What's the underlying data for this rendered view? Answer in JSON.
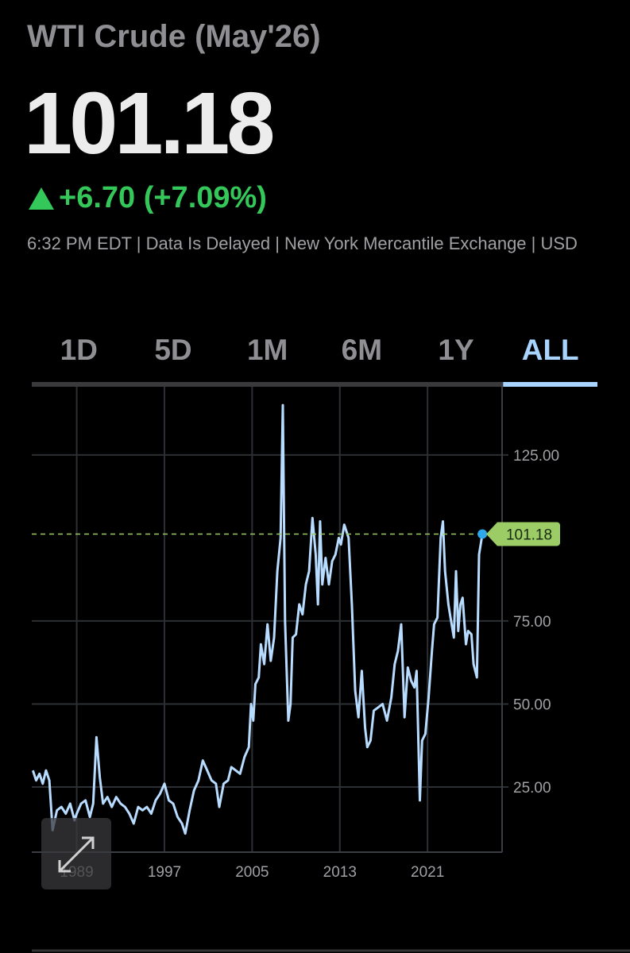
{
  "header": {
    "title": "WTI Crude (May'26)",
    "price": "101.18",
    "change": "+6.70 (+7.09%)",
    "info": "6:32 PM EDT | Data Is Delayed | New York Mercantile Exchange | USD"
  },
  "tabs": {
    "items": [
      "1D",
      "5D",
      "1M",
      "6M",
      "1Y",
      "ALL"
    ],
    "selected": 5
  },
  "chart_data": {
    "type": "line",
    "x": [
      1985.0,
      1985.3,
      1985.6,
      1985.9,
      1986.2,
      1986.5,
      1986.8,
      1987.2,
      1987.6,
      1988.0,
      1988.4,
      1988.8,
      1989.0,
      1989.4,
      1989.8,
      1990.2,
      1990.5,
      1990.8,
      1991.1,
      1991.4,
      1991.8,
      1992.2,
      1992.6,
      1993.0,
      1993.4,
      1993.8,
      1994.2,
      1994.6,
      1995.0,
      1995.4,
      1995.8,
      1996.2,
      1996.6,
      1997.0,
      1997.4,
      1997.8,
      1998.2,
      1998.6,
      1998.9,
      1999.3,
      1999.7,
      2000.1,
      2000.5,
      2000.9,
      2001.3,
      2001.7,
      2002.0,
      2002.4,
      2002.8,
      2003.1,
      2003.5,
      2003.9,
      2004.3,
      2004.7,
      2004.9,
      2005.1,
      2005.3,
      2005.6,
      2005.8,
      2006.1,
      2006.4,
      2006.7,
      2007.0,
      2007.3,
      2007.6,
      2007.8,
      2008.0,
      2008.3,
      2008.5,
      2008.7,
      2009.0,
      2009.3,
      2009.6,
      2009.9,
      2010.2,
      2010.5,
      2010.8,
      2011.0,
      2011.2,
      2011.4,
      2011.7,
      2012.0,
      2012.3,
      2012.6,
      2012.9,
      2013.1,
      2013.4,
      2013.8,
      2014.1,
      2014.4,
      2014.7,
      2015.0,
      2015.3,
      2015.5,
      2015.8,
      2016.1,
      2016.5,
      2016.9,
      2017.3,
      2017.7,
      2018.0,
      2018.3,
      2018.6,
      2018.9,
      2019.2,
      2019.5,
      2019.8,
      2020.0,
      2020.3,
      2020.5,
      2020.8,
      2021.1,
      2021.4,
      2021.6,
      2021.9,
      2022.2,
      2022.4,
      2022.6,
      2022.9,
      2023.1,
      2023.4,
      2023.6,
      2023.8,
      2024.0,
      2024.2,
      2024.5,
      2024.7,
      2025.0,
      2025.2,
      2025.5,
      2025.7,
      2026.0
    ],
    "series": [
      {
        "color": "#b8dcff",
        "values": [
          30,
          27,
          29,
          26,
          30,
          27,
          12,
          18,
          19,
          17,
          20,
          15,
          17,
          20,
          21,
          16,
          20,
          40,
          28,
          20,
          22,
          19,
          22,
          20,
          19,
          17,
          14,
          19,
          18,
          19,
          17,
          21,
          23,
          26,
          21,
          20,
          16,
          14,
          11,
          18,
          24,
          27,
          33,
          30,
          27,
          26,
          19,
          26,
          27,
          31,
          30,
          29,
          34,
          37,
          50,
          45,
          56,
          58,
          68,
          62,
          74,
          63,
          70,
          90,
          100,
          140,
          75,
          45,
          50,
          70,
          71,
          80,
          77,
          86,
          90,
          106,
          95,
          80,
          105,
          86,
          94,
          86,
          93,
          95,
          100,
          98,
          104,
          100,
          80,
          54,
          46,
          60,
          43,
          37,
          39,
          48,
          49,
          50,
          45,
          52,
          62,
          66,
          74,
          46,
          61,
          57,
          55,
          60,
          21,
          39,
          41,
          52,
          66,
          74,
          76,
          100,
          105,
          90,
          80,
          76,
          70,
          90,
          72,
          80,
          82,
          68,
          72,
          71,
          62,
          58,
          95,
          101.18
        ]
      }
    ],
    "xlim": [
      1984.9,
      2027.8
    ],
    "xticks": [
      1989,
      1997,
      2005,
      2013,
      2021
    ],
    "ylim": [
      5.4,
      146
    ],
    "yticks": [
      {
        "value": 25,
        "label": "25.00"
      },
      {
        "value": 50,
        "label": "50.00"
      },
      {
        "value": 75,
        "label": "75.00"
      },
      {
        "value": 125,
        "label": "125.00"
      }
    ],
    "grid": true,
    "reference_color": "#9ccc65"
  }
}
